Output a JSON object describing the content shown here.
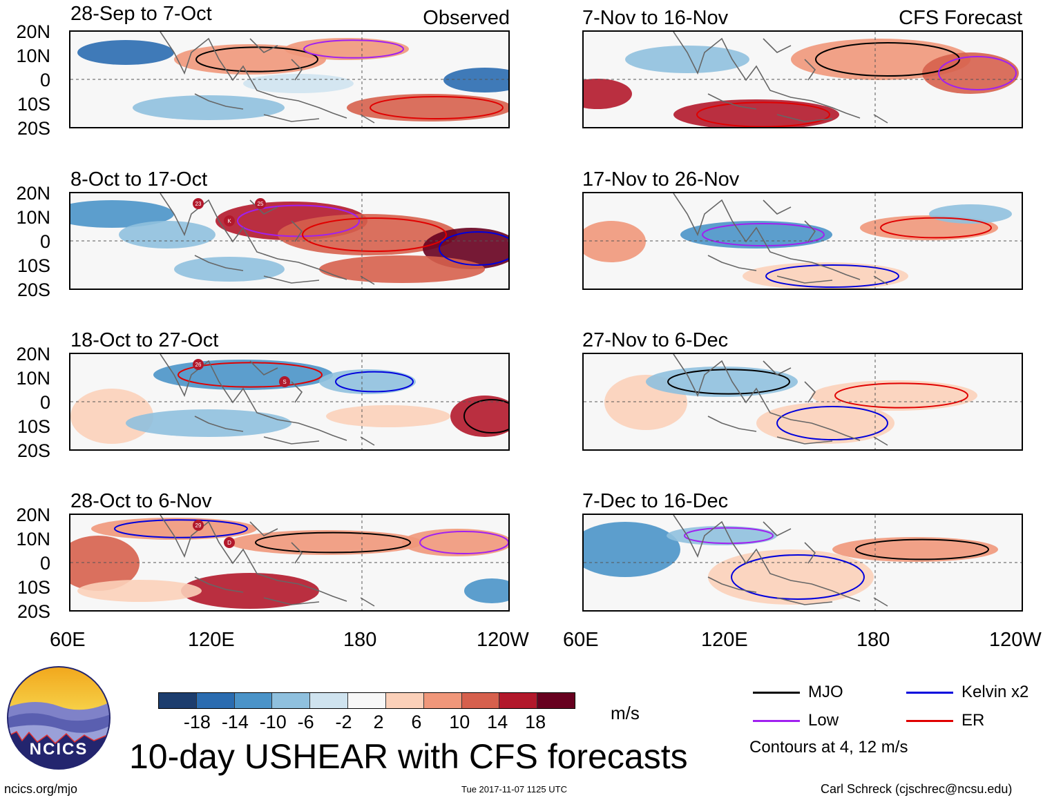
{
  "headers": {
    "observed": "Observed",
    "forecast": "CFS Forecast"
  },
  "lat_labels": [
    "20N",
    "10N",
    "0",
    "10S",
    "20S"
  ],
  "lon_labels": [
    "60E",
    "120E",
    "180",
    "120W"
  ],
  "panels": [
    {
      "title": "28-Sep to 7-Oct",
      "type": "observed"
    },
    {
      "title": "8-Oct to 17-Oct",
      "type": "observed",
      "storms": [
        "23",
        "K",
        "25"
      ]
    },
    {
      "title": "18-Oct to 27-Oct",
      "type": "observed",
      "storms": [
        "26",
        "S"
      ]
    },
    {
      "title": "28-Oct to 6-Nov",
      "type": "observed",
      "storms": [
        "29",
        "D"
      ]
    },
    {
      "title": "7-Nov to 16-Nov",
      "type": "forecast"
    },
    {
      "title": "17-Nov to 26-Nov",
      "type": "forecast"
    },
    {
      "title": "27-Nov to 6-Dec",
      "type": "forecast"
    },
    {
      "title": "7-Dec to 16-Dec",
      "type": "forecast"
    }
  ],
  "colorbar": {
    "labels": [
      "-18",
      "-14",
      "-10",
      "-6",
      "-2",
      "2",
      "6",
      "10",
      "14",
      "18"
    ],
    "colors": [
      "#1c3d6e",
      "#2a6cb0",
      "#4a93c8",
      "#8fc0de",
      "#cfe3ef",
      "#f7f7f7",
      "#fbd0b9",
      "#f0977a",
      "#d6604d",
      "#b2182b",
      "#67001f"
    ],
    "units": "m/s"
  },
  "legend": {
    "items": [
      {
        "label": "MJO",
        "color": "#000000"
      },
      {
        "label": "Kelvin x2",
        "color": "#0000dd"
      },
      {
        "label": "Low",
        "color": "#a020f0"
      },
      {
        "label": "ER",
        "color": "#e00000"
      }
    ],
    "note": "Contours at 4, 12 m/s"
  },
  "title": "10-day USHEAR with CFS forecasts",
  "logo_text": "NCICS",
  "footer": {
    "left": "ncics.org/mjo",
    "center": "Tue 2017-11-07 1125 UTC",
    "right": "Carl Schreck (cjschrec@ncsu.edu)"
  }
}
